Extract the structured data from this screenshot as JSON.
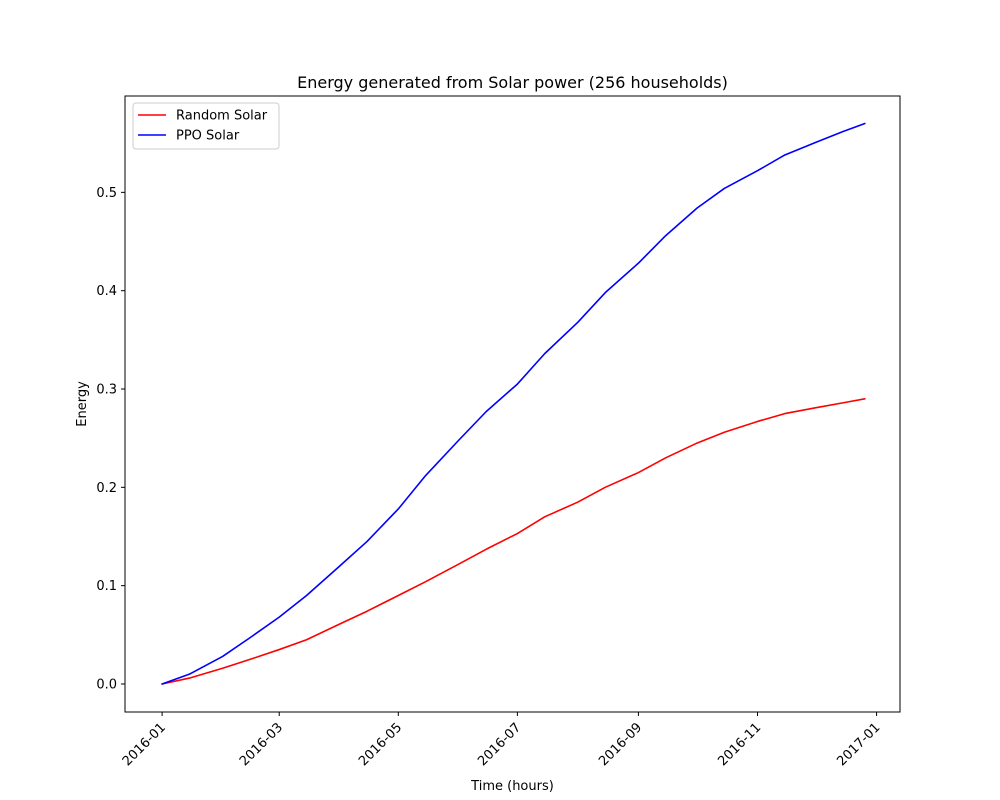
{
  "chart_data": {
    "type": "line",
    "title": "Energy generated from Solar power (256 households)",
    "xlabel": "Time (hours)",
    "ylabel": "Energy",
    "x_type": "date",
    "xlim": [
      "2015-12-13",
      "2017-01-13"
    ],
    "ylim": [
      -0.0285,
      0.598
    ],
    "x_ticks": [
      "2016-01-01",
      "2016-03-01",
      "2016-05-01",
      "2016-07-01",
      "2016-09-01",
      "2016-11-01",
      "2017-01-01"
    ],
    "x_tick_labels": [
      "2016-01",
      "2016-03",
      "2016-05",
      "2016-07",
      "2016-09",
      "2016-11",
      "2017-01"
    ],
    "y_ticks": [
      0.0,
      0.1,
      0.2,
      0.3,
      0.4,
      0.5
    ],
    "y_tick_labels": [
      "0.0",
      "0.1",
      "0.2",
      "0.3",
      "0.4",
      "0.5"
    ],
    "grid": false,
    "legend": "top-left",
    "x": [
      "2016-01-01",
      "2016-01-15",
      "2016-02-01",
      "2016-02-15",
      "2016-03-01",
      "2016-03-15",
      "2016-04-01",
      "2016-04-15",
      "2016-05-01",
      "2016-05-15",
      "2016-06-01",
      "2016-06-15",
      "2016-07-01",
      "2016-07-15",
      "2016-08-01",
      "2016-08-15",
      "2016-09-01",
      "2016-09-15",
      "2016-10-01",
      "2016-10-15",
      "2016-11-01",
      "2016-11-15",
      "2016-12-01",
      "2016-12-15",
      "2016-12-26"
    ],
    "series": [
      {
        "name": "Random Solar",
        "color": "#ff0000",
        "values": [
          0.0,
          0.006,
          0.016,
          0.025,
          0.035,
          0.045,
          0.061,
          0.074,
          0.09,
          0.104,
          0.122,
          0.137,
          0.153,
          0.17,
          0.185,
          0.2,
          0.215,
          0.23,
          0.245,
          0.256,
          0.267,
          0.275,
          0.281,
          0.286,
          0.29
        ]
      },
      {
        "name": "PPO Solar",
        "color": "#0000ff",
        "values": [
          0.0,
          0.01,
          0.028,
          0.047,
          0.068,
          0.09,
          0.12,
          0.145,
          0.178,
          0.212,
          0.248,
          0.277,
          0.305,
          0.336,
          0.368,
          0.398,
          0.428,
          0.456,
          0.484,
          0.504,
          0.522,
          0.538,
          0.551,
          0.562,
          0.57
        ]
      }
    ]
  }
}
